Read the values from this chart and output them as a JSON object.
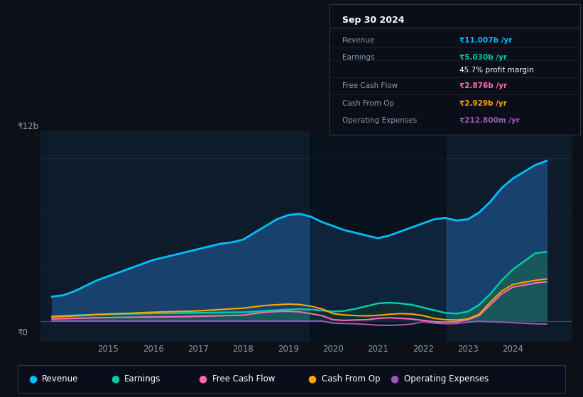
{
  "bg_color": "#0d1117",
  "plot_bg_color": "#0d1b2a",
  "ylabel_top": "₹12b",
  "ylabel_zero": "₹0",
  "years": [
    2013.75,
    2014,
    2014.25,
    2014.5,
    2014.75,
    2015,
    2015.25,
    2015.5,
    2015.75,
    2016,
    2016.25,
    2016.5,
    2016.75,
    2017,
    2017.25,
    2017.5,
    2017.75,
    2018,
    2018.25,
    2018.5,
    2018.75,
    2019,
    2019.25,
    2019.5,
    2019.75,
    2020,
    2020.25,
    2020.5,
    2020.75,
    2021,
    2021.25,
    2021.5,
    2021.75,
    2022,
    2022.25,
    2022.5,
    2022.75,
    2023,
    2023.25,
    2023.5,
    2023.75,
    2024,
    2024.5,
    2024.75
  ],
  "revenue": [
    1.8,
    1.9,
    2.2,
    2.6,
    3.0,
    3.3,
    3.6,
    3.9,
    4.2,
    4.5,
    4.7,
    4.9,
    5.1,
    5.3,
    5.5,
    5.7,
    5.8,
    6.0,
    6.5,
    7.0,
    7.5,
    7.8,
    7.9,
    7.7,
    7.3,
    7.0,
    6.7,
    6.5,
    6.3,
    6.1,
    6.3,
    6.6,
    6.9,
    7.2,
    7.5,
    7.6,
    7.4,
    7.5,
    8.0,
    8.8,
    9.8,
    10.5,
    11.5,
    11.8
  ],
  "earnings": [
    0.35,
    0.38,
    0.42,
    0.45,
    0.48,
    0.5,
    0.52,
    0.54,
    0.55,
    0.57,
    0.58,
    0.59,
    0.6,
    0.61,
    0.62,
    0.63,
    0.64,
    0.65,
    0.7,
    0.75,
    0.8,
    0.85,
    0.88,
    0.85,
    0.78,
    0.7,
    0.75,
    0.9,
    1.1,
    1.3,
    1.35,
    1.3,
    1.2,
    1.0,
    0.8,
    0.6,
    0.55,
    0.7,
    1.2,
    2.0,
    3.0,
    3.8,
    5.0,
    5.1
  ],
  "free_cash_flow": [
    0.15,
    0.18,
    0.2,
    0.22,
    0.24,
    0.25,
    0.27,
    0.28,
    0.29,
    0.3,
    0.31,
    0.32,
    0.33,
    0.35,
    0.37,
    0.39,
    0.41,
    0.43,
    0.55,
    0.65,
    0.7,
    0.72,
    0.68,
    0.55,
    0.4,
    0.1,
    0.05,
    0.08,
    0.1,
    0.2,
    0.25,
    0.2,
    0.15,
    0.05,
    -0.05,
    -0.08,
    -0.05,
    0.1,
    0.4,
    1.2,
    2.0,
    2.5,
    2.8,
    2.9
  ],
  "cash_from_op": [
    0.3,
    0.35,
    0.38,
    0.42,
    0.48,
    0.52,
    0.55,
    0.58,
    0.62,
    0.65,
    0.68,
    0.7,
    0.72,
    0.75,
    0.8,
    0.85,
    0.9,
    0.95,
    1.05,
    1.15,
    1.2,
    1.25,
    1.22,
    1.1,
    0.9,
    0.55,
    0.45,
    0.4,
    0.38,
    0.42,
    0.5,
    0.55,
    0.52,
    0.4,
    0.2,
    0.1,
    0.08,
    0.15,
    0.5,
    1.4,
    2.2,
    2.7,
    3.0,
    3.1
  ],
  "op_expenses": [
    0.0,
    0.0,
    0.0,
    0.0,
    0.0,
    0.0,
    0.0,
    0.0,
    0.0,
    0.0,
    0.0,
    0.0,
    0.0,
    0.0,
    0.0,
    0.0,
    0.0,
    0.0,
    0.0,
    0.0,
    0.0,
    0.0,
    0.0,
    0.0,
    0.0,
    -0.15,
    -0.18,
    -0.2,
    -0.25,
    -0.3,
    -0.32,
    -0.28,
    -0.22,
    -0.05,
    -0.15,
    -0.2,
    -0.18,
    -0.08,
    -0.02,
    -0.05,
    -0.08,
    -0.12,
    -0.2,
    -0.22
  ],
  "revenue_color": "#00bfff",
  "earnings_color": "#00cba9",
  "fcf_color": "#ff69b4",
  "cashop_color": "#ffa500",
  "opex_color": "#9b59b6",
  "revenue_fill": "#1a4a7a",
  "earnings_fill": "#1a5a5a",
  "legend_items": [
    "Revenue",
    "Earnings",
    "Free Cash Flow",
    "Cash From Op",
    "Operating Expenses"
  ],
  "legend_colors": [
    "#00bfff",
    "#00cba9",
    "#ff69b4",
    "#ffa500",
    "#9b59b6"
  ],
  "tooltip_title": "Sep 30 2024",
  "xtick_labels": [
    "2015",
    "2016",
    "2017",
    "2018",
    "2019",
    "2020",
    "2021",
    "2022",
    "2023",
    "2024"
  ],
  "xtick_values": [
    2015,
    2016,
    2017,
    2018,
    2019,
    2020,
    2021,
    2022,
    2023,
    2024
  ],
  "ylim": [
    -1.5,
    14
  ],
  "xlim": [
    2013.5,
    2025.3
  ],
  "band_start": 2019.5,
  "band_end": 2022.5
}
